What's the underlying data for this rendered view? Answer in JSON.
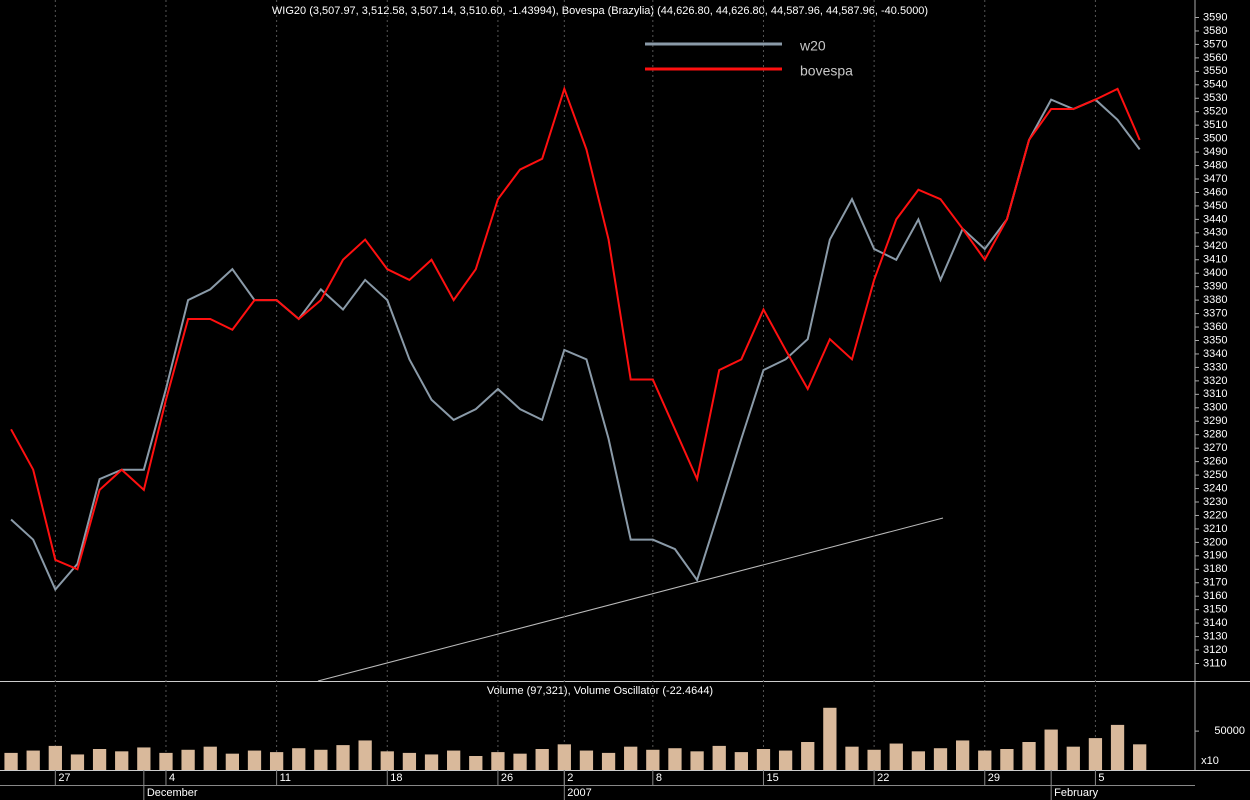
{
  "chart_data": {
    "type": "line",
    "title": "WIG20 (3,507.97, 3,512.58, 3,507.14, 3,510.60, -1.43994), Bovespa (Brazylia) (44,626.80, 44,626.80, 44,587.96, 44,587.96, -40.5000)",
    "x": [
      0,
      1,
      2,
      3,
      4,
      5,
      6,
      7,
      8,
      9,
      10,
      11,
      12,
      13,
      14,
      15,
      16,
      17,
      18,
      19,
      20,
      21,
      22,
      23,
      24,
      25,
      26,
      27,
      28,
      29,
      30,
      31,
      32,
      33,
      34,
      35,
      36,
      37,
      38,
      39,
      40,
      41,
      42,
      43,
      44,
      45,
      46,
      47,
      48,
      49,
      50,
      51
    ],
    "series": [
      {
        "name": "w20",
        "color": "#8a9aa8",
        "values": [
          3217,
          3202,
          3165,
          3184,
          3247,
          3254,
          3254,
          3314,
          3380,
          3388,
          3403,
          3380,
          3380,
          3366,
          3388,
          3373,
          3395,
          3380,
          3336,
          3306,
          3291,
          3299,
          3314,
          3299,
          3291,
          3343,
          3336,
          3277,
          3202,
          3202,
          3195,
          3172,
          3224,
          3277,
          3328,
          3336,
          3351,
          3425,
          3455,
          3418,
          3410,
          3440,
          3395,
          3433,
          3418,
          3440,
          3499,
          3529,
          3522,
          3529,
          3514,
          3492
        ]
      },
      {
        "name": "bovespa",
        "color": "#ff1010",
        "values": [
          3284,
          3254,
          3187,
          3180,
          3239,
          3254,
          3239,
          3306,
          3366,
          3366,
          3358,
          3380,
          3380,
          3366,
          3380,
          3410,
          3425,
          3403,
          3395,
          3410,
          3380,
          3403,
          3455,
          3477,
          3485,
          3537,
          3492,
          3425,
          3321,
          3321,
          3284,
          3247,
          3328,
          3336,
          3373,
          3343,
          3314,
          3351,
          3336,
          3395,
          3440,
          3462,
          3455,
          3433,
          3410,
          3440,
          3499,
          3522,
          3522,
          3529,
          3537,
          3499
        ]
      }
    ],
    "xlim": [
      -0.5,
      53.5
    ],
    "xticks": [
      {
        "value": 2,
        "label": "27"
      },
      {
        "value": 7,
        "label": "4"
      },
      {
        "value": 12,
        "label": "11"
      },
      {
        "value": 17,
        "label": "18"
      },
      {
        "value": 22,
        "label": "26"
      },
      {
        "value": 25,
        "label": "2"
      },
      {
        "value": 29,
        "label": "8"
      },
      {
        "value": 34,
        "label": "15"
      },
      {
        "value": 39,
        "label": "22"
      },
      {
        "value": 44,
        "label": "29"
      },
      {
        "value": 49,
        "label": "5"
      }
    ],
    "month_ticks": [
      {
        "value": 6,
        "label": "December"
      },
      {
        "value": 25,
        "label": "2007"
      },
      {
        "value": 47,
        "label": "February"
      }
    ],
    "ylim": [
      3097,
      3603
    ],
    "yticks": [
      3110,
      3120,
      3130,
      3140,
      3150,
      3160,
      3170,
      3180,
      3190,
      3200,
      3210,
      3220,
      3230,
      3240,
      3250,
      3260,
      3270,
      3280,
      3290,
      3300,
      3310,
      3320,
      3330,
      3340,
      3350,
      3360,
      3370,
      3380,
      3390,
      3400,
      3410,
      3420,
      3430,
      3440,
      3450,
      3460,
      3470,
      3480,
      3490,
      3500,
      3510,
      3520,
      3530,
      3540,
      3550,
      3560,
      3570,
      3580,
      3590
    ],
    "grid": true,
    "volume": {
      "title": "Volume (97,321), Volume Oscillator (-22.4644)",
      "color": "#d9b99b",
      "values": [
        22000,
        25000,
        31000,
        20000,
        27000,
        24000,
        29000,
        22000,
        26000,
        30000,
        21000,
        25000,
        23000,
        28000,
        26000,
        32000,
        38000,
        24000,
        22000,
        20000,
        25000,
        18000,
        23000,
        21000,
        27000,
        33000,
        25000,
        22000,
        30000,
        26000,
        28000,
        24000,
        31000,
        23000,
        27000,
        25000,
        36000,
        80000,
        30000,
        26000,
        34000,
        24000,
        28000,
        38000,
        25000,
        27000,
        36000,
        52000,
        30000,
        41000,
        58000,
        33000
      ],
      "ylim": [
        0,
        90000
      ],
      "yticks": [
        50000
      ],
      "unit_label": "x10"
    }
  }
}
